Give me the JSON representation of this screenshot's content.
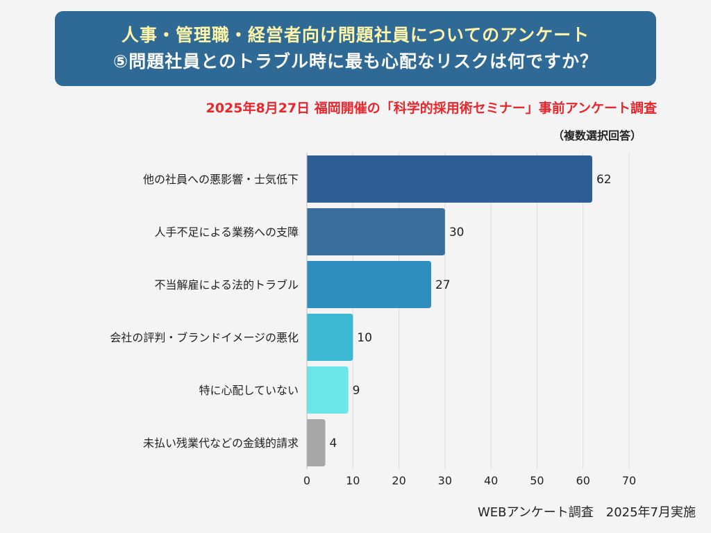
{
  "header": {
    "title_line1": "人事・管理職・経営者向け問題社員についてのアンケート",
    "title_line2": "⑤問題社員とのトラブル時に最も心配なリスクは何ですか？"
  },
  "subtitle": "2025年8月27日 福岡開催の「科学的採用術セミナー」事前アンケート調査",
  "note": "（複数選択回答）",
  "footer": "WEBアンケート調査　2025年7月実施",
  "colors": {
    "title_bg": "#2f6a97",
    "title_text_1": "#fff5a8",
    "title_text_2": "#ffffff",
    "subtitle": "#e8262b",
    "grid": "#dddddd"
  },
  "chart_data": {
    "type": "bar",
    "orientation": "horizontal",
    "categories": [
      "他の社員への悪影響・士気低下",
      "人手不足による業務への支障",
      "不当解雇による法的トラブル",
      "会社の評判・ブランドイメージの悪化",
      "特に心配していない",
      "未払い残業代などの金銭的請求"
    ],
    "values": [
      62,
      30,
      27,
      10,
      9,
      4
    ],
    "bar_colors": [
      "#2d5d94",
      "#396e9c",
      "#2d8dbd",
      "#3db8d3",
      "#6be5e7",
      "#a7a7a7"
    ],
    "xlim": [
      0,
      70
    ],
    "xticks": [
      0,
      10,
      20,
      30,
      40,
      50,
      60,
      70
    ],
    "grid": true,
    "xlabel": "",
    "ylabel": ""
  }
}
